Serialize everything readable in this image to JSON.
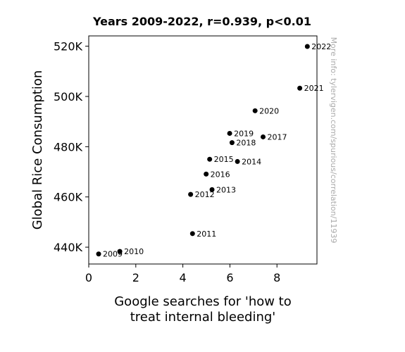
{
  "chart_data": {
    "type": "scatter",
    "title": "Years 2009-2022, r=0.939, p<0.01",
    "xlabel_lines": [
      "Google searches for 'how to",
      "treat internal bleeding'"
    ],
    "ylabel": "Global Rice Consumption",
    "xlim": [
      0,
      9.7
    ],
    "ylim": [
      433300,
      524100
    ],
    "x_ticks": [
      0,
      2,
      4,
      6,
      8
    ],
    "x_tick_labels": [
      "0",
      "2",
      "4",
      "6",
      "8"
    ],
    "y_ticks": [
      440000,
      460000,
      480000,
      500000,
      520000
    ],
    "y_tick_labels": [
      "440K",
      "460K",
      "480K",
      "500K",
      "520K"
    ],
    "grid": false,
    "marker_color": "#000000",
    "points": [
      {
        "label": "2009",
        "x": 0.42,
        "y": 437300
      },
      {
        "label": "2010",
        "x": 1.32,
        "y": 438300
      },
      {
        "label": "2011",
        "x": 4.41,
        "y": 445400
      },
      {
        "label": "2012",
        "x": 4.33,
        "y": 461000
      },
      {
        "label": "2013",
        "x": 5.24,
        "y": 462900
      },
      {
        "label": "2014",
        "x": 6.32,
        "y": 474100
      },
      {
        "label": "2015",
        "x": 5.14,
        "y": 475000
      },
      {
        "label": "2016",
        "x": 4.99,
        "y": 469100
      },
      {
        "label": "2017",
        "x": 7.41,
        "y": 483900
      },
      {
        "label": "2018",
        "x": 6.09,
        "y": 481600
      },
      {
        "label": "2019",
        "x": 5.99,
        "y": 485300
      },
      {
        "label": "2020",
        "x": 7.07,
        "y": 494300
      },
      {
        "label": "2021",
        "x": 8.97,
        "y": 503300
      },
      {
        "label": "2022",
        "x": 9.29,
        "y": 519900
      }
    ]
  },
  "watermark": "More info: tylervigen.com/spurious/correlation/11939"
}
